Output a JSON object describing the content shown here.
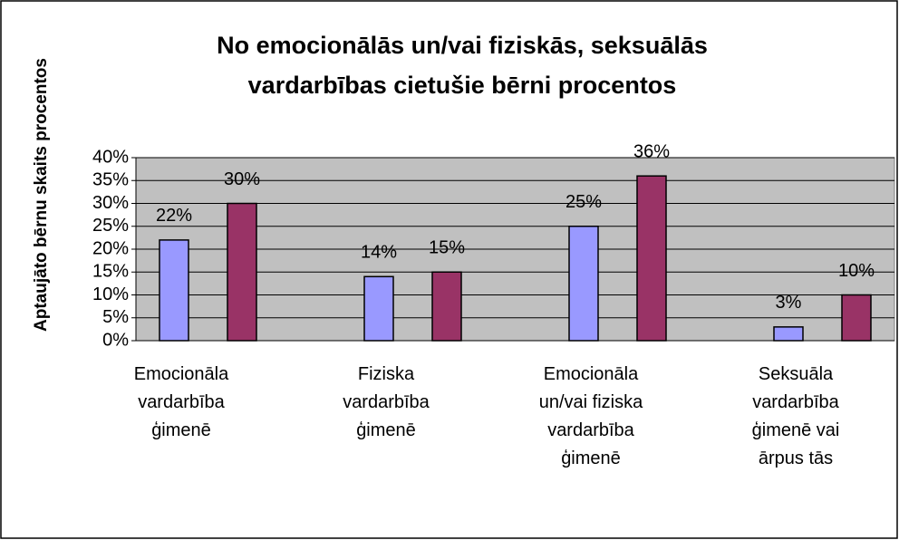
{
  "chart_data": {
    "type": "bar",
    "title": "No emocionālās un/vai fiziskās, seksuālās vardarbības cietušie bērni procentos",
    "y_label": "Aptaujāto bērnu skaits procentos",
    "categories": [
      "Emocionāla vardarbība ģimenē",
      "Fiziska vardarbība ģimenē",
      "Emocionāla un/vai fiziska vardarbība ģimenē",
      "Seksuāla vardarbība ģimenē vai ārpus tās"
    ],
    "series": [
      {
        "color": "#9999ff",
        "values": [
          22,
          14,
          25,
          3
        ],
        "value_labels": [
          "22%",
          "14%",
          "25%",
          "3%"
        ]
      },
      {
        "color": "#993366",
        "values": [
          30,
          15,
          36,
          10
        ],
        "value_labels": [
          "30%",
          "15%",
          "36%",
          "10%"
        ]
      }
    ],
    "ylim": [
      0,
      40
    ],
    "yticks": [
      {
        "value": 0,
        "label": "0%"
      },
      {
        "value": 5,
        "label": "5%"
      },
      {
        "value": 10,
        "label": "10%"
      },
      {
        "value": 15,
        "label": "15%"
      },
      {
        "value": 20,
        "label": "20%"
      },
      {
        "value": 25,
        "label": "25%"
      },
      {
        "value": 30,
        "label": "30%"
      },
      {
        "value": 35,
        "label": "35%"
      },
      {
        "value": 40,
        "label": "40%"
      }
    ],
    "grid": true,
    "plot_background": "#c0c0c0"
  }
}
